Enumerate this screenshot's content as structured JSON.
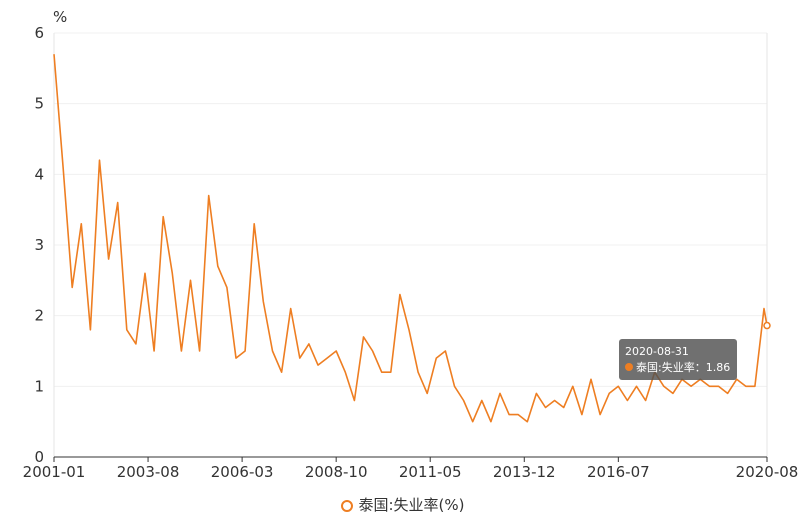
{
  "chart_data": {
    "type": "line",
    "y_unit": "%",
    "ylim": [
      0,
      6
    ],
    "y_ticks": [
      "0",
      "1",
      "2",
      "3",
      "4",
      "5",
      "6"
    ],
    "x_tick_labels": [
      "2001-01",
      "2003-08",
      "2006-03",
      "2008-10",
      "2011-05",
      "2013-12",
      "2016-07",
      "2020-08"
    ],
    "grid": true,
    "legend_position": "bottom",
    "series": [
      {
        "name": "泰国:失业率(%)",
        "color": "#ee7e22",
        "x": [
          "2001-01",
          "2001-04",
          "2001-07",
          "2001-10",
          "2002-01",
          "2002-04",
          "2002-07",
          "2002-10",
          "2003-01",
          "2003-04",
          "2003-07",
          "2003-10",
          "2004-01",
          "2004-04",
          "2004-07",
          "2004-10",
          "2005-01",
          "2005-04",
          "2005-07",
          "2005-10",
          "2006-01",
          "2006-04",
          "2006-07",
          "2006-10",
          "2007-01",
          "2007-04",
          "2007-07",
          "2007-10",
          "2008-01",
          "2008-04",
          "2008-07",
          "2008-10",
          "2009-01",
          "2009-04",
          "2009-07",
          "2009-10",
          "2010-01",
          "2010-04",
          "2010-07",
          "2010-10",
          "2011-01",
          "2011-04",
          "2011-07",
          "2011-10",
          "2012-01",
          "2012-04",
          "2012-07",
          "2012-10",
          "2013-01",
          "2013-04",
          "2013-07",
          "2013-10",
          "2014-01",
          "2014-04",
          "2014-07",
          "2014-10",
          "2015-01",
          "2015-04",
          "2015-07",
          "2015-10",
          "2016-01",
          "2016-04",
          "2016-07",
          "2016-10",
          "2017-01",
          "2017-04",
          "2017-07",
          "2017-10",
          "2018-01",
          "2018-04",
          "2018-07",
          "2018-10",
          "2019-01",
          "2019-04",
          "2019-07",
          "2019-10",
          "2020-01",
          "2020-04",
          "2020-07",
          "2020-08"
        ],
        "values": [
          5.7,
          4.1,
          2.4,
          3.3,
          1.8,
          4.2,
          2.8,
          3.6,
          1.8,
          1.6,
          2.6,
          1.5,
          3.4,
          2.6,
          1.5,
          2.5,
          1.5,
          3.7,
          2.7,
          2.4,
          1.4,
          1.5,
          3.3,
          2.2,
          1.5,
          1.2,
          2.1,
          1.4,
          1.6,
          1.3,
          1.4,
          1.5,
          1.2,
          0.8,
          1.7,
          1.5,
          1.2,
          1.2,
          2.3,
          1.8,
          1.2,
          0.9,
          1.4,
          1.5,
          1.0,
          0.8,
          0.5,
          0.8,
          0.5,
          0.9,
          0.6,
          0.6,
          0.5,
          0.9,
          0.7,
          0.8,
          0.7,
          1.0,
          0.6,
          1.1,
          0.6,
          0.9,
          1.0,
          0.8,
          1.0,
          0.8,
          1.2,
          1.0,
          0.9,
          1.1,
          1.0,
          1.1,
          1.0,
          1.0,
          0.9,
          1.1,
          1.0,
          1.0,
          2.1,
          1.86
        ]
      }
    ]
  },
  "tooltip": {
    "date": "2020-08-31",
    "label": "泰国:失业率：1.86"
  }
}
